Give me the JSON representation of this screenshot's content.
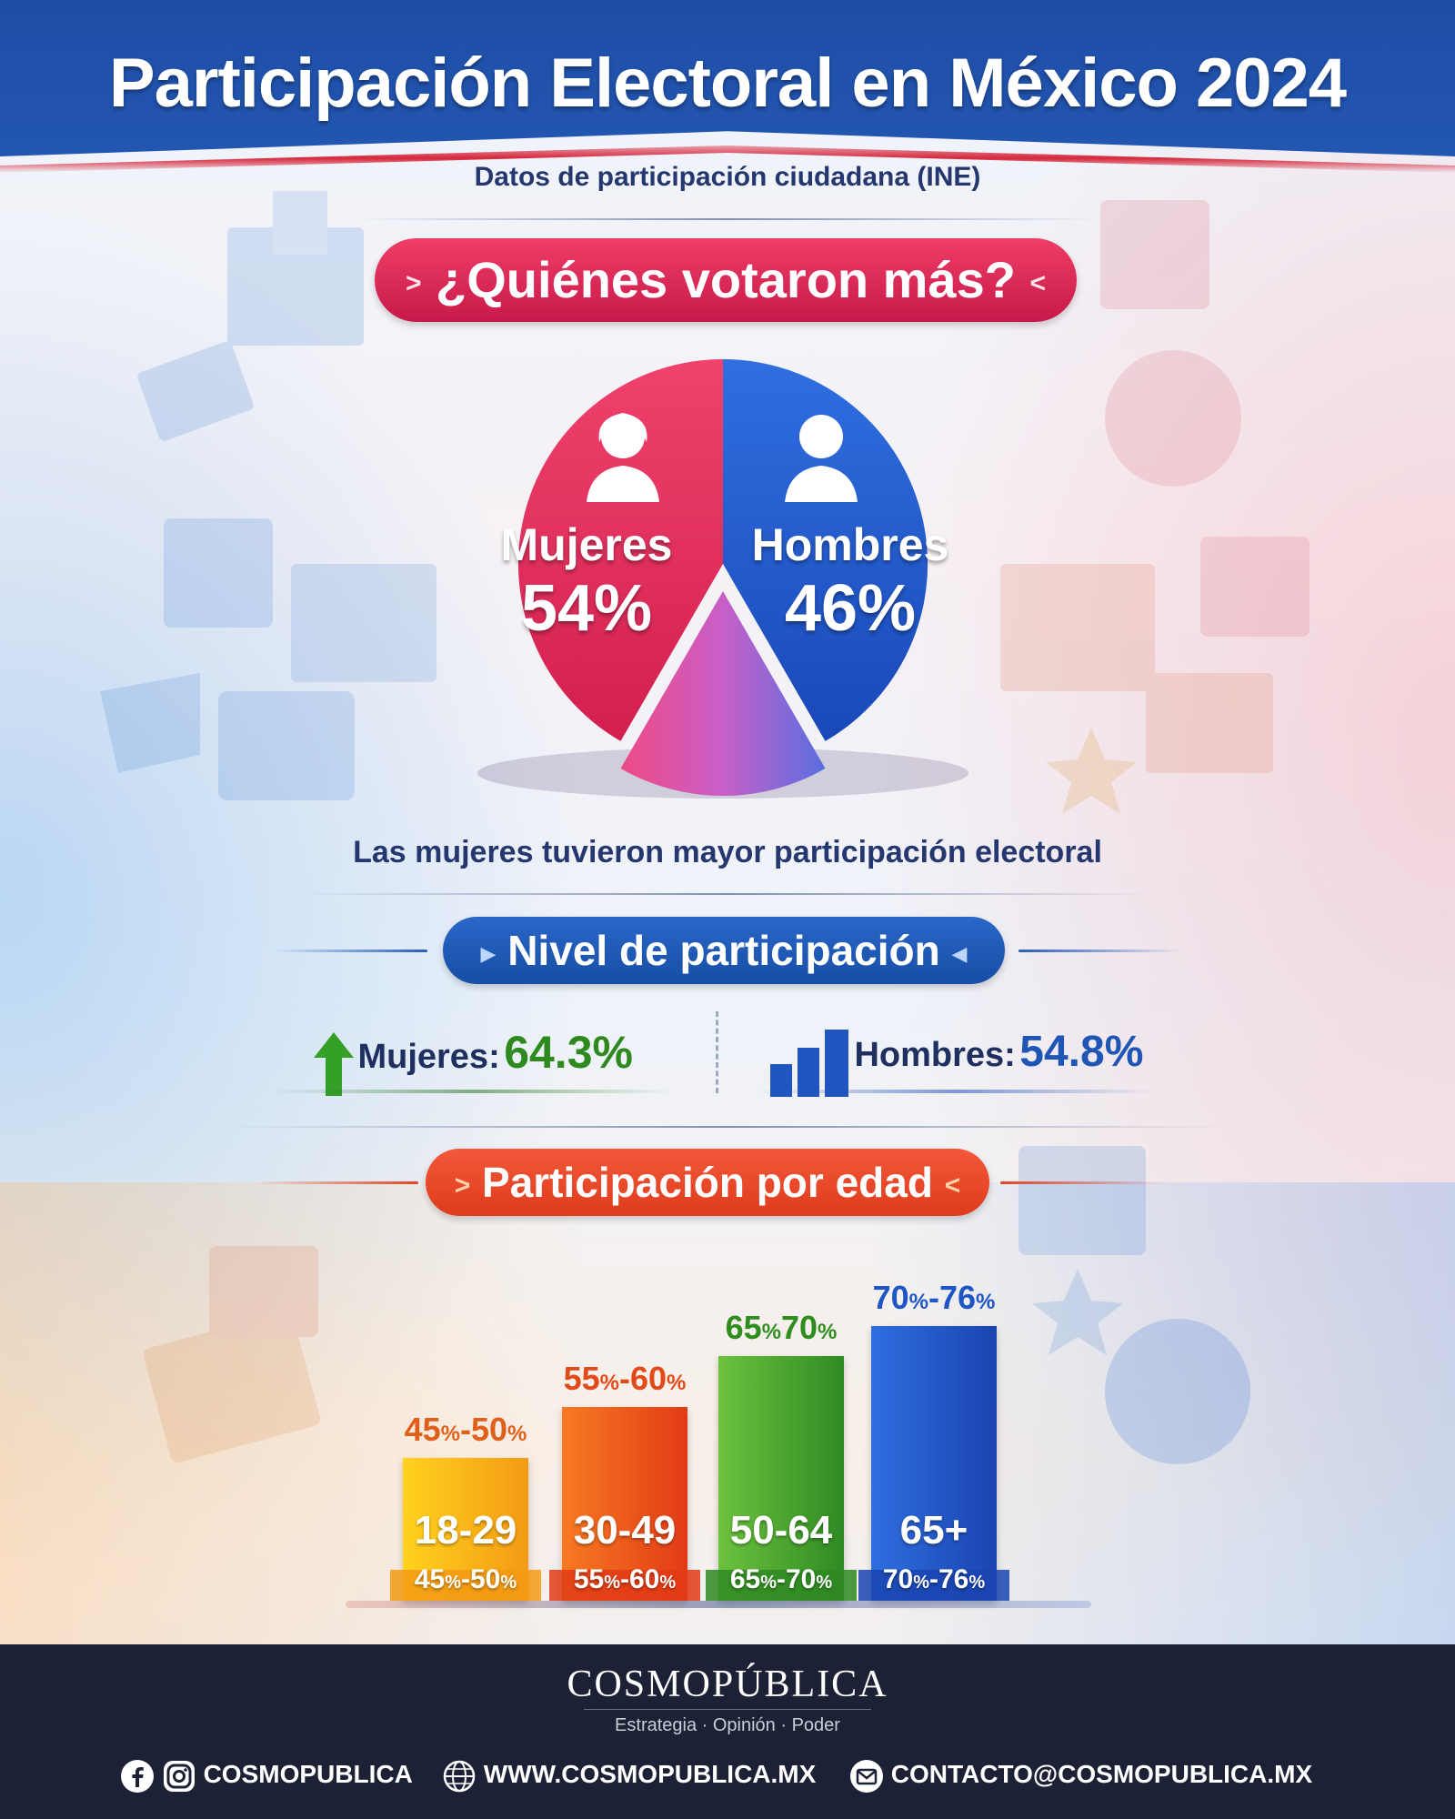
{
  "header": {
    "title": "Participación Electoral en México 2024",
    "subtitle": "Datos de participación ciudadana (INE)"
  },
  "section_gender": {
    "heading": "¿Quiénes votaron más?",
    "caption": "Las mujeres tuvieron mayor participación electoral"
  },
  "section_level": {
    "heading": "Nivel de participación",
    "women_label": "Mujeres:",
    "women_value": "64.3%",
    "men_label": "Hombres:",
    "men_value": "54.8%"
  },
  "section_age": {
    "heading": "Participación por edad"
  },
  "chart_data": [
    {
      "type": "pie",
      "title": "¿Quiénes votaron más?",
      "slices": [
        {
          "label": "Mujeres",
          "value": 54,
          "display": "54%",
          "color": "#e8325c"
        },
        {
          "label": "Hombres",
          "value": 46,
          "display": "46%",
          "color": "#1f5bd0"
        }
      ]
    },
    {
      "type": "bar",
      "title": "Nivel de participación",
      "categories": [
        "Mujeres",
        "Hombres"
      ],
      "values": [
        64.3,
        54.8
      ],
      "unit": "%"
    },
    {
      "type": "bar",
      "title": "Participación por edad",
      "categories": [
        "18-29",
        "30-49",
        "50-64",
        "65+"
      ],
      "ranges": [
        [
          45,
          50
        ],
        [
          55,
          60
        ],
        [
          65,
          70
        ],
        [
          70,
          76
        ]
      ],
      "top_labels": [
        {
          "a": "45",
          "b": "-50%"
        },
        {
          "a": "55",
          "b": "-60%"
        },
        {
          "a": "65",
          "b": "70%"
        },
        {
          "a": "70",
          "b": "-76%"
        }
      ],
      "bottom_labels": [
        {
          "a": "45",
          "b": "-50%"
        },
        {
          "a": "55",
          "b": "-60%"
        },
        {
          "a": "65",
          "b": "-70%"
        },
        {
          "a": "70",
          "b": "-76%"
        }
      ],
      "colors": [
        "#f6b818",
        "#ef5a1e",
        "#4aa83a",
        "#1f56c6"
      ],
      "label_colors": [
        "#e0601b",
        "#e24a1a",
        "#2f8d1e",
        "#1f56c6"
      ]
    }
  ],
  "footer": {
    "brand": "COSMOPÚBLICA",
    "tagline": "Estrategia · Opinión · Poder",
    "social": "COSMOPUBLICA",
    "website": "WWW.COSMOPUBLICA.MX",
    "email": "CONTACTO@COSMOPUBLICA.MX"
  },
  "colors": {
    "header_blue": "#2457b3",
    "accent_red": "#d6283c",
    "footer_bg": "#1c2136"
  }
}
